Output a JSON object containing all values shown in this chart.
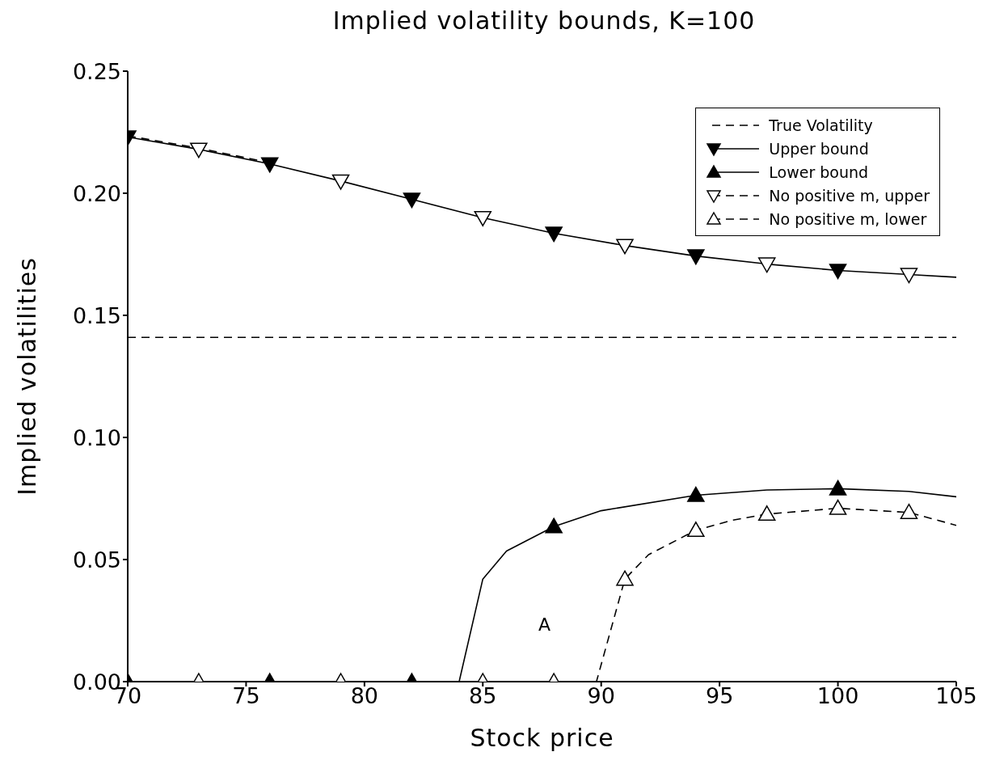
{
  "chart_data": {
    "type": "line",
    "title": "Implied volatility bounds, K=100",
    "xlabel": "Stock price",
    "ylabel": "Implied volatilities",
    "xlim": [
      70,
      105
    ],
    "xticks": [
      70,
      75,
      80,
      85,
      90,
      95,
      100,
      105
    ],
    "ylim": [
      0,
      0.25
    ],
    "yticks": [
      {
        "value": 0,
        "label": "0.00"
      },
      {
        "value": 0.05,
        "label": "0.05"
      },
      {
        "value": 0.1,
        "label": "0.10"
      },
      {
        "value": 0.15,
        "label": "0.15"
      },
      {
        "value": 0.2,
        "label": "0.20"
      },
      {
        "value": 0.25,
        "label": "0.25"
      }
    ],
    "grid": false,
    "legend": "top right",
    "annotations": [
      "A"
    ],
    "series": [
      {
        "name": "True Volatility",
        "line_style": "dashed",
        "marker": "none",
        "color": "#000000",
        "x": [
          70,
          105
        ],
        "values": [
          0.141,
          0.141
        ]
      },
      {
        "line_style": "solid",
        "marker": "none",
        "color": "#000000",
        "x": [
          70,
          73,
          76,
          79,
          82,
          85,
          88,
          91,
          94,
          97,
          100,
          103,
          105
        ],
        "values": [
          0.223,
          0.218,
          0.212,
          0.205,
          0.1975,
          0.19,
          0.1836,
          0.1786,
          0.1743,
          0.171,
          0.1684,
          0.1667,
          0.1656
        ]
      },
      {
        "line_style": "dashed",
        "marker": "none",
        "color": "#000000",
        "x": [
          70,
          73,
          76
        ],
        "values": [
          0.2235,
          0.2185,
          0.2125
        ]
      },
      {
        "line_style": "solid",
        "marker": "none",
        "color": "#000000",
        "x": [
          70,
          84,
          85,
          86,
          88,
          90,
          94,
          97,
          100,
          103,
          105
        ],
        "values": [
          0,
          0,
          0.042,
          0.0535,
          0.0635,
          0.07,
          0.0763,
          0.0785,
          0.079,
          0.0779,
          0.0757
        ]
      },
      {
        "line_style": "dashed",
        "marker": "none",
        "color": "#000000",
        "x": [
          70,
          89.8,
          91,
          92,
          94,
          95.5,
          97,
          100,
          103,
          105
        ],
        "values": [
          0,
          0,
          0.042,
          0.052,
          0.062,
          0.066,
          0.0686,
          0.071,
          0.0693,
          0.064
        ]
      },
      {
        "name": "Upper bound",
        "type": "scatter",
        "marker": "triangle-down",
        "line_style": "solid",
        "color": "#000000",
        "x": [
          70,
          76,
          82,
          88,
          94,
          100
        ],
        "values": [
          0.223,
          0.212,
          0.1975,
          0.1836,
          0.1743,
          0.1684
        ]
      },
      {
        "name": "Lower bound",
        "type": "scatter",
        "marker": "triangle",
        "line_style": "solid",
        "color": "#000000",
        "x": [
          70,
          76,
          82,
          88,
          94,
          100
        ],
        "values": [
          0,
          0,
          0,
          0.0635,
          0.0763,
          0.079
        ]
      },
      {
        "name": "No positive m, upper",
        "type": "scatter",
        "marker": "triangle-down",
        "line_style": "dashed",
        "color": "#ffffff",
        "x": [
          73,
          79,
          85,
          91,
          97,
          103
        ],
        "values": [
          0.218,
          0.205,
          0.19,
          0.1786,
          0.171,
          0.1667
        ]
      },
      {
        "name": "No positive m, lower",
        "type": "scatter",
        "marker": "triangle",
        "line_style": "dashed",
        "color": "#ffffff",
        "x": [
          73,
          79,
          85,
          88,
          91,
          94,
          97,
          100,
          103
        ],
        "values": [
          0,
          0,
          0,
          0,
          0.042,
          0.062,
          0.0686,
          0.071,
          0.0693
        ]
      }
    ]
  }
}
